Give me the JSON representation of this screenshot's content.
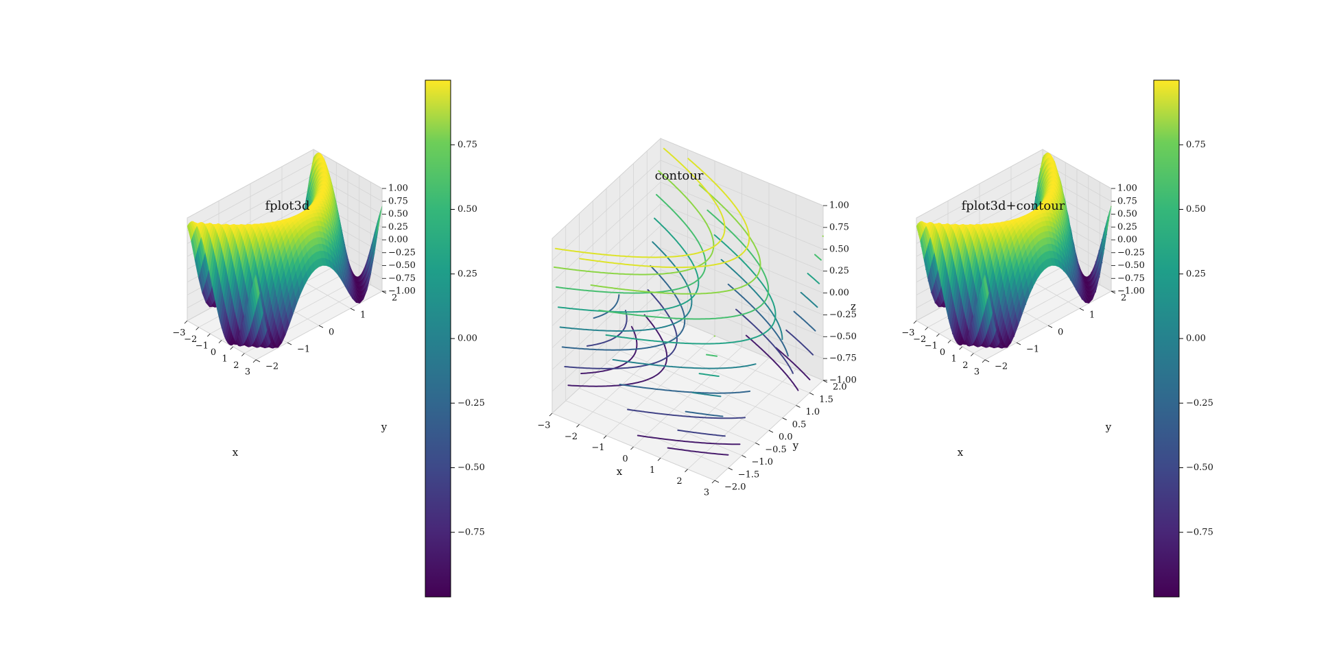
{
  "chart_data": [
    {
      "type": "surface3d",
      "title": "fplot3d",
      "xlabel": "x",
      "ylabel": "y",
      "zlabel": "",
      "xlim": [
        -3,
        3
      ],
      "ylim": [
        -2,
        2
      ],
      "zlim": [
        -1,
        1
      ],
      "xticks": [
        "−3",
        "−2",
        "−1",
        "0",
        "1",
        "2",
        "3"
      ],
      "yticks": [
        "−2",
        "−1",
        "0",
        "1",
        "2"
      ],
      "zticks": [
        "−1.00",
        "−0.75",
        "−0.50",
        "−0.25",
        "0.00",
        "0.25",
        "0.50",
        "0.75",
        "1.00"
      ],
      "function": "sin(x + y^2)",
      "colormap": "viridis"
    },
    {
      "type": "contour3d",
      "title": "contour",
      "xlabel": "x",
      "ylabel": "y",
      "zlabel": "z",
      "xlim": [
        -3,
        3
      ],
      "ylim": [
        -2,
        2
      ],
      "zlim": [
        -1,
        1
      ],
      "xticks": [
        "−3",
        "−2",
        "−1",
        "0",
        "1",
        "2",
        "3"
      ],
      "yticks": [
        "−2.0",
        "−1.5",
        "−1.0",
        "−0.5",
        "0.0",
        "0.5",
        "1.0",
        "1.5",
        "2.0"
      ],
      "zticks": [
        "−1.00",
        "−0.75",
        "−0.50",
        "−0.25",
        "0.00",
        "0.25",
        "0.50",
        "0.75",
        "1.00"
      ],
      "levels": [
        -0.85,
        -0.6,
        -0.35,
        -0.1,
        0.15,
        0.4,
        0.65,
        0.9
      ],
      "colormap": "viridis"
    },
    {
      "type": "surface3d+contour3d",
      "title": "fplot3d+contour",
      "xlabel": "x",
      "ylabel": "y",
      "zlabel": "",
      "xlim": [
        -3,
        3
      ],
      "ylim": [
        -2,
        2
      ],
      "zlim": [
        -1,
        1
      ],
      "xticks": [
        "−3",
        "−2",
        "−1",
        "0",
        "1",
        "2",
        "3"
      ],
      "yticks": [
        "−2",
        "−1",
        "0",
        "1",
        "2"
      ],
      "zticks": [
        "−1.00",
        "−0.75",
        "−0.50",
        "−0.25",
        "0.00",
        "0.25",
        "0.50",
        "0.75",
        "1.00"
      ],
      "colormap": "viridis"
    }
  ],
  "colorbars": [
    {
      "ticks": [
        "0.75",
        "0.50",
        "0.25",
        "0.00",
        "−0.25",
        "−0.50",
        "−0.75"
      ],
      "tick_values": [
        0.75,
        0.5,
        0.25,
        0,
        -0.25,
        -0.5,
        -0.75
      ],
      "range": [
        -1,
        1
      ]
    },
    {
      "ticks": [
        "0.75",
        "0.50",
        "0.25",
        "0.00",
        "−0.25",
        "−0.50",
        "−0.75"
      ],
      "tick_values": [
        0.75,
        0.5,
        0.25,
        0,
        -0.25,
        -0.5,
        -0.75
      ],
      "range": [
        -1,
        1
      ]
    }
  ],
  "colors": {
    "pane": "#f2f2f2",
    "grid": "#d4d4d4",
    "edge": "#bdbdbd"
  }
}
